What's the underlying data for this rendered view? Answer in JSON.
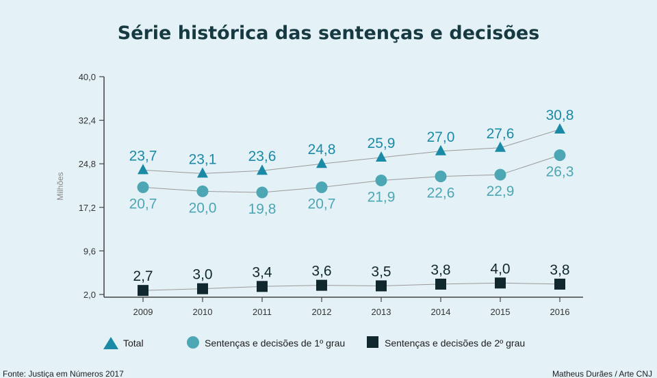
{
  "chart_data": {
    "type": "line",
    "title": "Série histórica das sentenças e decisões",
    "ylabel": "Milhões",
    "xlabel": "",
    "categories": [
      "2009",
      "2010",
      "2011",
      "2012",
      "2013",
      "2014",
      "2015",
      "2016"
    ],
    "yticks": [
      "40,0",
      "32,4",
      "24,8",
      "17,2",
      "9,6",
      "2,0"
    ],
    "ylim": [
      2.0,
      40.0
    ],
    "grid": false,
    "legend_position": "bottom",
    "series": [
      {
        "name": "Total",
        "marker": "triangle",
        "color": "#1a8aa6",
        "values": [
          23.7,
          23.1,
          23.6,
          24.8,
          25.9,
          27.0,
          27.6,
          30.8
        ],
        "labels": [
          "23,7",
          "23,1",
          "23,6",
          "24,8",
          "25,9",
          "27,0",
          "27,6",
          "30,8"
        ]
      },
      {
        "name": "Sentenças e decisões de 1º grau",
        "marker": "circle",
        "color": "#4da6b3",
        "values": [
          20.7,
          20.0,
          19.8,
          20.7,
          21.9,
          22.6,
          22.9,
          26.3
        ],
        "labels": [
          "20,7",
          "20,0",
          "19,8",
          "20,7",
          "21,9",
          "22,6",
          "22,9",
          "26,3"
        ]
      },
      {
        "name": "Sentenças e decisões de 2º grau",
        "marker": "square",
        "color": "#10272e",
        "values": [
          2.7,
          3.0,
          3.4,
          3.6,
          3.5,
          3.8,
          4.0,
          3.8
        ],
        "labels": [
          "2,7",
          "3,0",
          "3,4",
          "3,6",
          "3,5",
          "3,8",
          "4,0",
          "3,8"
        ]
      }
    ]
  },
  "footer": {
    "source": "Fonte: Justiça em Números 2017",
    "credit": "Matheus Durães / Arte CNJ"
  },
  "colors": {
    "background": "#e4f1f6",
    "title": "#173a42",
    "connector": "#9a9a9a",
    "axis": "#444444"
  }
}
